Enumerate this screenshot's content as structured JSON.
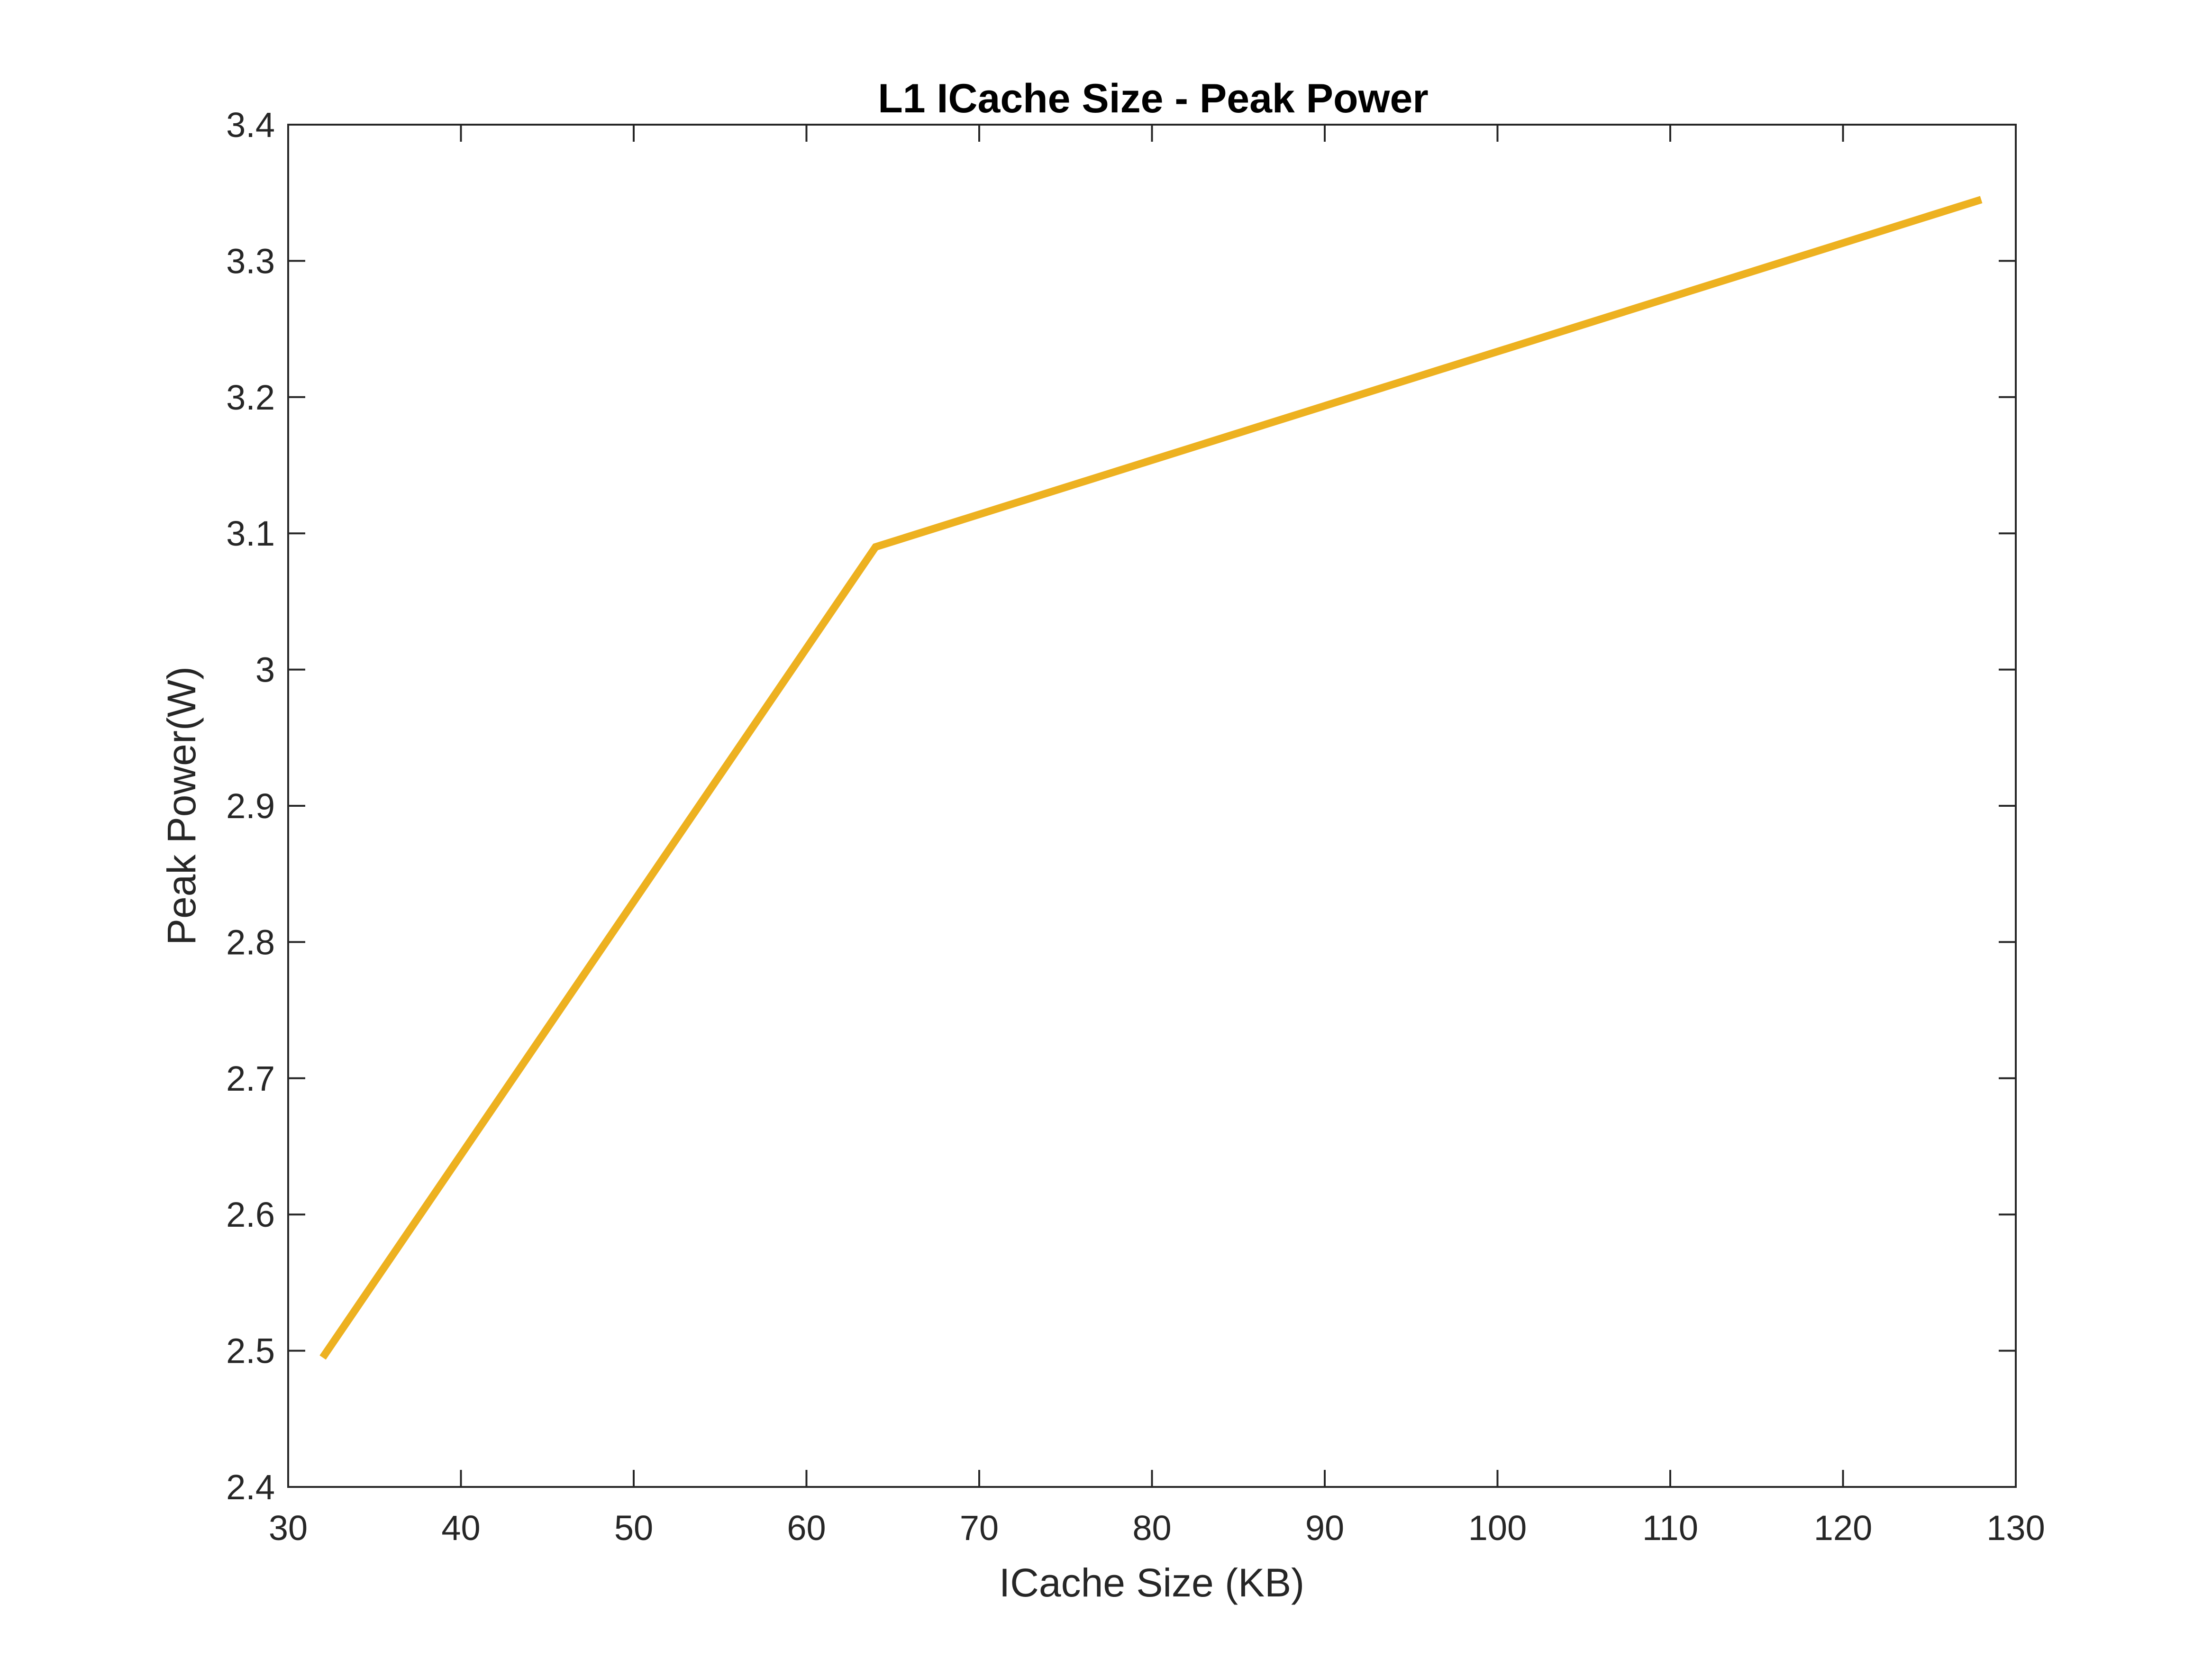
{
  "chart_data": {
    "type": "line",
    "title": "L1 ICache Size - Peak Power",
    "xlabel": "ICache Size (KB)",
    "ylabel": "Peak Power(W)",
    "xlim": [
      30,
      130
    ],
    "ylim": [
      2.4,
      3.4
    ],
    "xticks": [
      "30",
      "40",
      "50",
      "60",
      "70",
      "80",
      "90",
      "100",
      "110",
      "120",
      "130"
    ],
    "yticks": [
      "2.4",
      "2.5",
      "2.6",
      "2.7",
      "2.8",
      "2.9",
      "3",
      "3.1",
      "3.2",
      "3.3",
      "3.4"
    ],
    "grid": false,
    "legend": null,
    "series": [
      {
        "color": "#EDB120",
        "x": [
          32,
          64,
          128
        ],
        "y": [
          2.495,
          3.09,
          3.345
        ]
      }
    ]
  }
}
